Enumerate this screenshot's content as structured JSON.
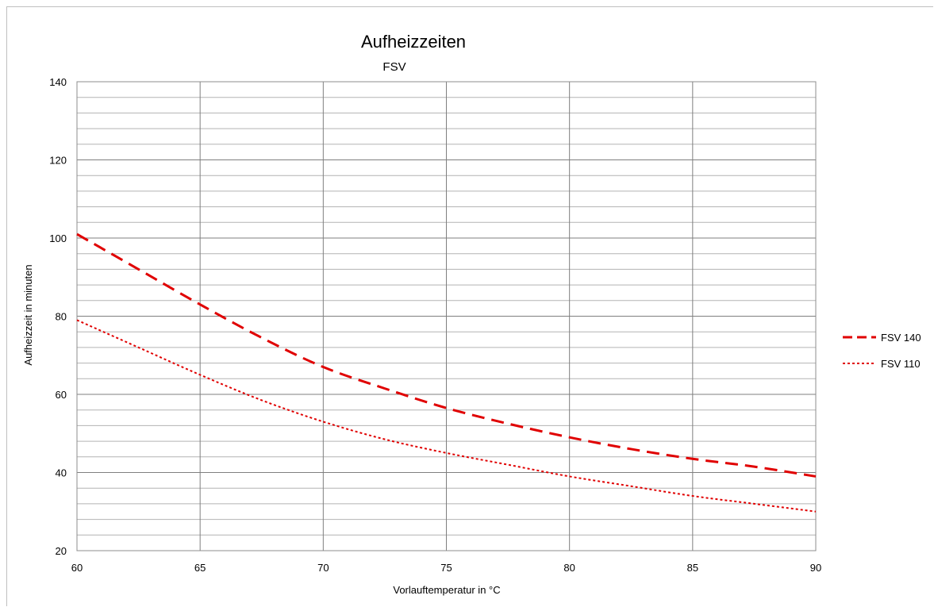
{
  "chart_data": {
    "type": "line",
    "title": "Aufheizzeiten",
    "subtitle": "FSV",
    "xlabel": "Vorlauftemperatur in  °C",
    "ylabel": "Aufheizzeit in minuten",
    "xlim": [
      60,
      90
    ],
    "ylim": [
      20,
      140
    ],
    "x_ticks": [
      60,
      65,
      70,
      75,
      80,
      85,
      90
    ],
    "y_ticks": [
      20,
      40,
      60,
      80,
      100,
      120,
      140
    ],
    "y_minor_step": 4,
    "grid": true,
    "legend_position": "right",
    "series": [
      {
        "name": "FSV 140",
        "style": "dashed",
        "color": "#e00000",
        "x": [
          60,
          62.5,
          65,
          67.5,
          70,
          72.5,
          75,
          77.5,
          80,
          82.5,
          85,
          87.5,
          90
        ],
        "y": [
          101,
          92,
          83,
          74.5,
          67,
          61.5,
          56.5,
          52.5,
          49,
          46,
          43.5,
          41.5,
          39
        ]
      },
      {
        "name": "FSV 110",
        "style": "dotted",
        "color": "#e00000",
        "x": [
          60,
          62.5,
          65,
          67.5,
          70,
          72.5,
          75,
          77.5,
          80,
          82.5,
          85,
          87.5,
          90
        ],
        "y": [
          79,
          72,
          65,
          58.5,
          53,
          48.5,
          45,
          42,
          39,
          36.5,
          34,
          32,
          30
        ]
      }
    ]
  }
}
